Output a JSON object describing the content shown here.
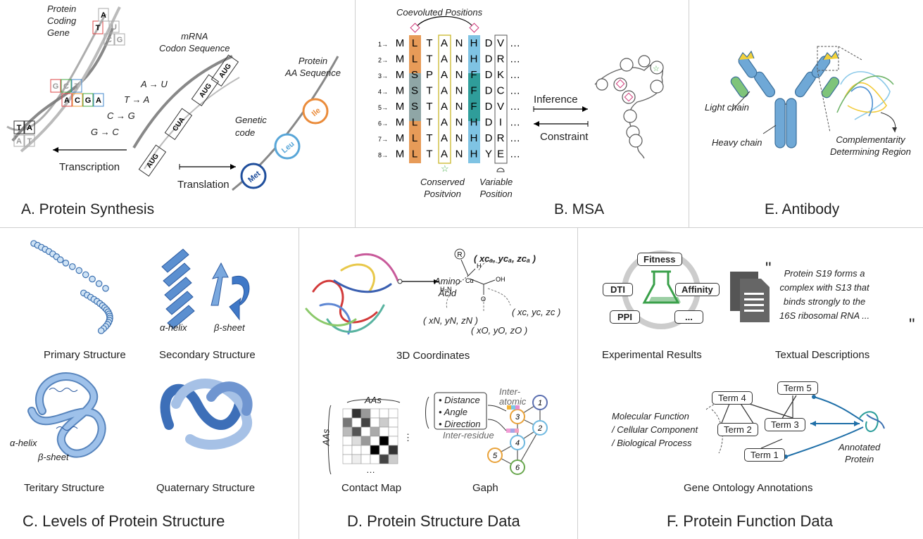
{
  "panelA": {
    "title": "A. Protein Synthesis",
    "protein_coding_gene": [
      "Protein",
      "Coding",
      "Gene"
    ],
    "mrna_label": [
      "mRNA",
      "Codon Sequence"
    ],
    "protein_aa_label": [
      "Protein",
      "AA Sequence"
    ],
    "rules": [
      "A → U",
      "T → A",
      "C → G",
      "G → C"
    ],
    "genetic_code": [
      "Genetic",
      "code"
    ],
    "transcription": "Transcription",
    "translation": "Translation",
    "amino_acids": [
      "Met",
      "Leu",
      "Ile"
    ],
    "codons": [
      "AUG",
      "CUA",
      "AUG",
      "AUG"
    ],
    "dna_letters": [
      "T",
      "A",
      "A",
      "T",
      "G",
      "C",
      "T",
      "A",
      "C",
      "G",
      "A",
      "T",
      "A",
      "C",
      "U",
      "G"
    ]
  },
  "panelB": {
    "title": "B. MSA",
    "coevoluted": "Coevoluted Positions",
    "conserved": [
      "Conserved",
      "Positvion"
    ],
    "variable": [
      "Variable",
      "Position"
    ],
    "inference": "Inference",
    "constraint": "Constraint",
    "rows": [
      {
        "idx": "1→",
        "seq": [
          "M",
          "L",
          "T",
          "A",
          "N",
          "H",
          "D",
          "V"
        ]
      },
      {
        "idx": "2→",
        "seq": [
          "M",
          "L",
          "T",
          "A",
          "N",
          "H",
          "D",
          "R"
        ]
      },
      {
        "idx": "3→",
        "seq": [
          "M",
          "S",
          "P",
          "A",
          "N",
          "F",
          "D",
          "K"
        ]
      },
      {
        "idx": "4→",
        "seq": [
          "M",
          "S",
          "T",
          "A",
          "N",
          "F",
          "D",
          "C"
        ]
      },
      {
        "idx": "5→",
        "seq": [
          "M",
          "S",
          "T",
          "A",
          "N",
          "F",
          "D",
          "V"
        ]
      },
      {
        "idx": "6→",
        "seq": [
          "M",
          "L",
          "T",
          "A",
          "N",
          "H",
          "D",
          "I"
        ]
      },
      {
        "idx": "7→",
        "seq": [
          "M",
          "L",
          "T",
          "A",
          "N",
          "H",
          "D",
          "R"
        ]
      },
      {
        "idx": "8→",
        "seq": [
          "M",
          "L",
          "T",
          "A",
          "N",
          "H",
          "Y",
          "E"
        ]
      }
    ],
    "ellipsis": "…"
  },
  "panelE": {
    "title": "E. Antibody",
    "light_chain": "Light chain",
    "heavy_chain": "Heavy chain",
    "cdr": [
      "Complementarity",
      "Determining Region"
    ]
  },
  "panelC": {
    "title": "C. Levels of Protein Structure",
    "primary": "Primary Structure",
    "secondary": "Secondary Structure",
    "tertiary": "Teritary Structure",
    "quaternary": "Quaternary Structure",
    "alpha_helix": "α-helix",
    "beta_sheet": "β-sheet"
  },
  "panelD": {
    "title": "D. Protein Structure Data",
    "coords_caption": "3D Coordinates",
    "amino_acid": [
      "Amino",
      "Acid"
    ],
    "coord_ca": "( xᴄₐ, yᴄₐ, zᴄₐ )",
    "coord_c": "( xc, yc, zc )",
    "coord_n": "( xN, yN, zN )",
    "coord_o": "( xO, yO, zO )",
    "atoms": [
      "R",
      "H",
      "H₂N",
      "Cα",
      "OH",
      "O"
    ],
    "contact_map": "Contact Map",
    "aas": "AAs",
    "graph": "Gaph",
    "features": [
      "• Distance",
      "• Angle",
      "• Direction"
    ],
    "inter_atomic": [
      "Inter-",
      "atomic"
    ],
    "inter_residue": "Inter-residue",
    "nodes": [
      "1",
      "2",
      "3",
      "4",
      "5",
      "6"
    ],
    "dots": "…",
    "vdots": "⋮"
  },
  "panelF": {
    "title": "F. Protein Function Data",
    "experimental": "Experimental Results",
    "textual": "Textual Descriptions",
    "labels": [
      "Fitness",
      "DTI",
      "Affinity",
      "PPI",
      "..."
    ],
    "quote": [
      "Protein S19 forms a",
      "complex with S13 that",
      "binds strongly to the",
      "16S ribosomal RNA ..."
    ],
    "go": "Gene Ontology Annotations",
    "terms": [
      "Term 4",
      "Term 5",
      "Term 2",
      "Term 3",
      "Term 1"
    ],
    "categories": [
      "Molecular Function",
      "/ Cellular Component",
      "/ Biological Process"
    ],
    "annotated": [
      "Annotated",
      "Protein"
    ]
  }
}
